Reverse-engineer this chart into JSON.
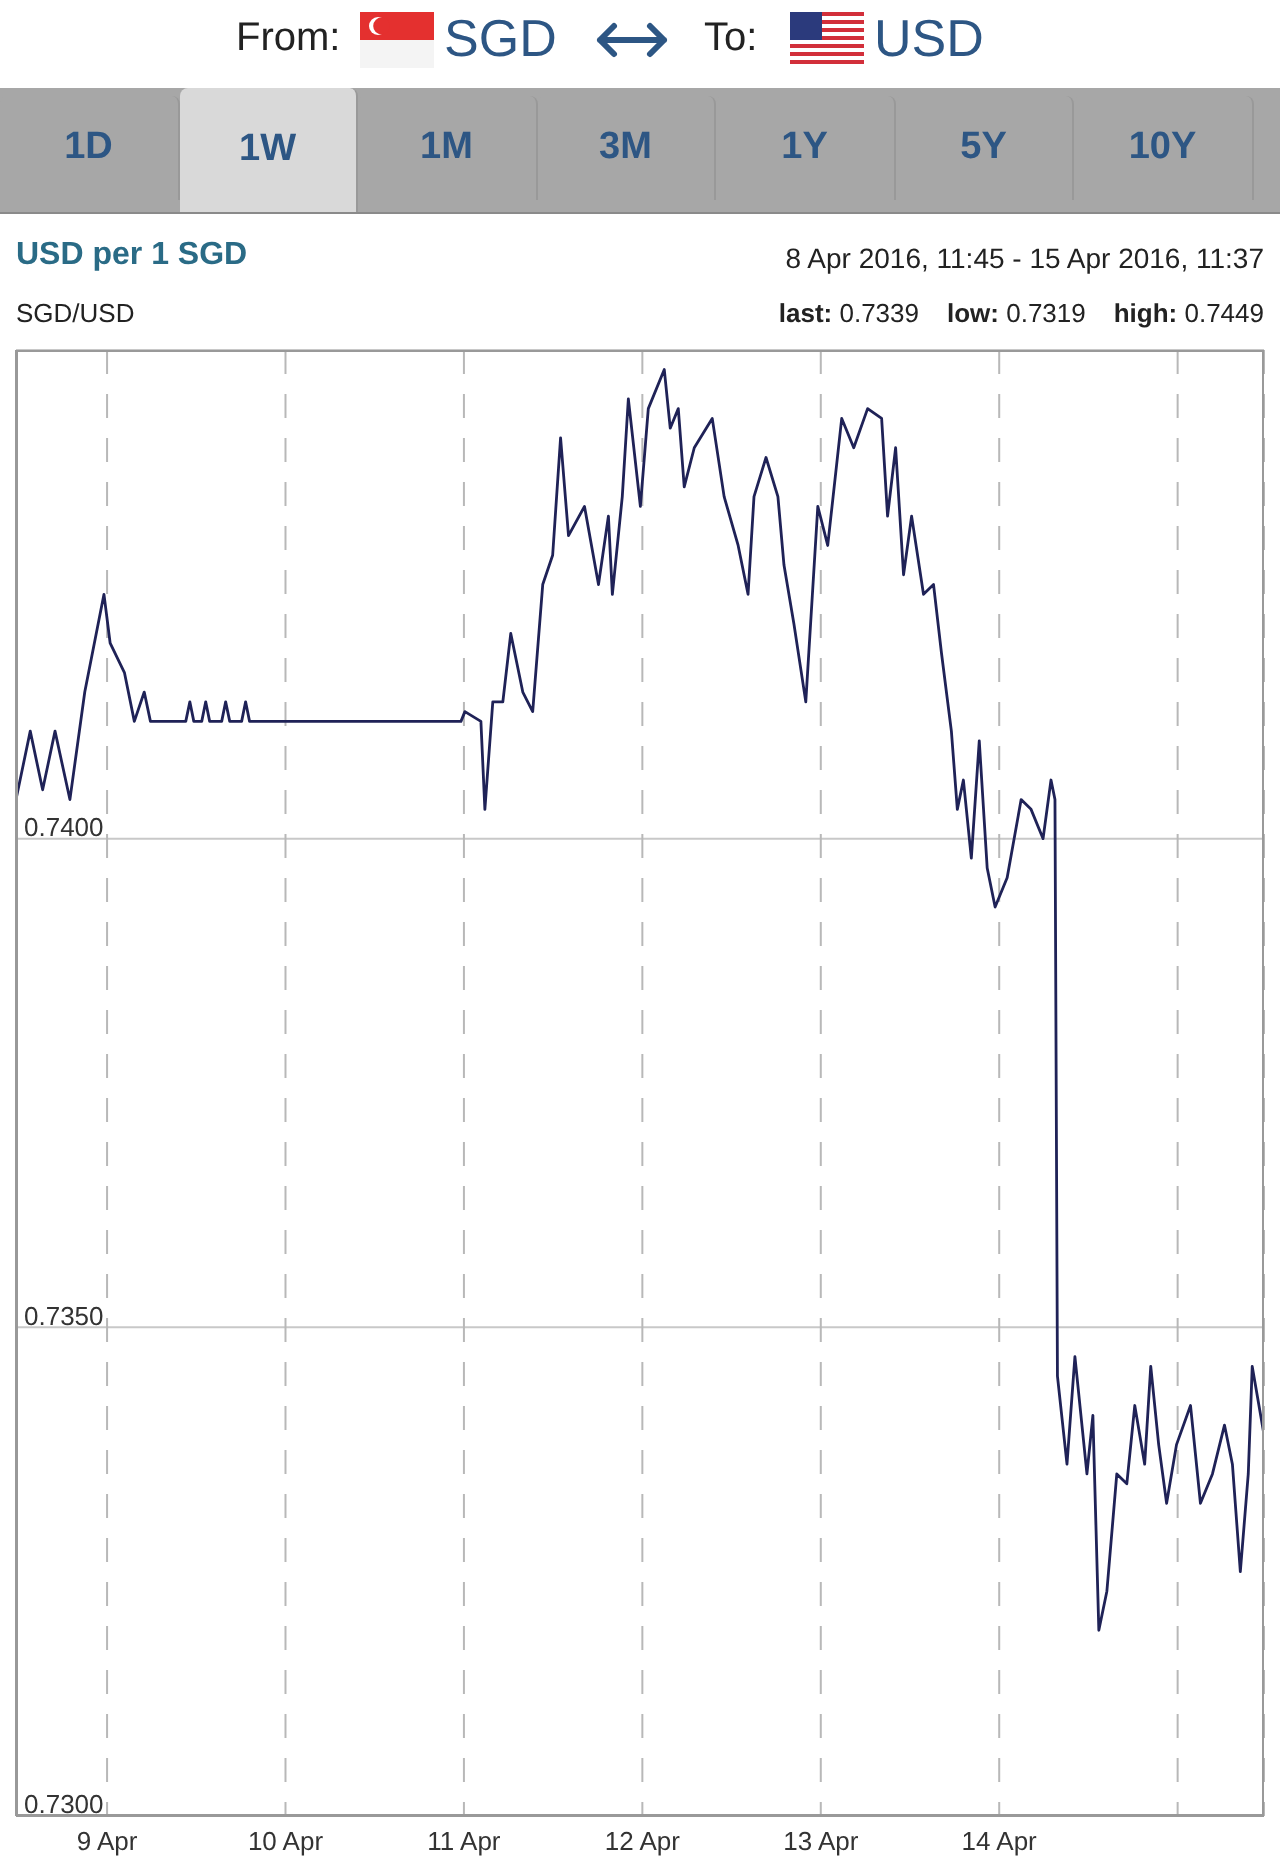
{
  "chart_data": {
    "type": "line",
    "title": "USD per 1 SGD",
    "subtitle": "SGD/USD",
    "annotations": [
      "From:",
      "SGD",
      "To:",
      "USD",
      "1D",
      "1W",
      "1M",
      "3M",
      "1Y",
      "5Y",
      "10Y",
      "8 Apr 2016, 11:45 - 15 Apr 2016, 11:37",
      "last: 0.7339",
      "low: 0.7319",
      "high: 0.7449"
    ],
    "x": [
      "2016-04-08T11:45",
      "2016-04-08T13:40",
      "2016-04-08T15:20",
      "2016-04-08T17:00",
      "2016-04-08T19:00",
      "2016-04-08T21:00",
      "2016-04-08T23:35",
      "2016-04-09T00:25",
      "2016-04-09T02:20",
      "2016-04-09T03:40",
      "2016-04-09T05:00",
      "2016-04-09T05:50",
      "2016-04-09T10:35",
      "2016-04-09T11:08",
      "2016-04-09T11:40",
      "2016-04-09T12:44",
      "2016-04-09T13:16",
      "2016-04-09T13:48",
      "2016-04-09T15:25",
      "2016-04-09T15:57",
      "2016-04-09T16:30",
      "2016-04-09T18:06",
      "2016-04-09T18:38",
      "2016-04-09T19:10",
      "2016-04-10T23:36",
      "2016-04-11T00:08",
      "2016-04-11T02:17",
      "2016-04-11T02:49",
      "2016-04-11T03:53",
      "2016-04-11T05:14",
      "2016-04-11T06:18",
      "2016-04-11T07:55",
      "2016-04-11T09:15",
      "2016-04-11T10:36",
      "2016-04-11T11:56",
      "2016-04-11T13:00",
      "2016-04-11T14:04",
      "2016-04-11T16:13",
      "2016-04-11T18:06",
      "2016-04-11T19:26",
      "2016-04-11T19:58",
      "2016-04-11T21:18",
      "2016-04-11T22:07",
      "2016-04-11T23:44",
      "2016-04-12T00:48",
      "2016-04-12T02:57",
      "2016-04-12T03:45",
      "2016-04-12T04:50",
      "2016-04-12T05:38",
      "2016-04-12T06:59",
      "2016-04-12T09:24",
      "2016-04-12T11:00",
      "2016-04-12T12:53",
      "2016-04-12T14:13",
      "2016-04-12T15:01",
      "2016-04-12T16:38",
      "2016-04-12T18:14",
      "2016-04-12T19:03",
      "2016-04-12T20:23",
      "2016-04-12T21:59",
      "2016-04-12T23:36",
      "2016-04-13T00:56",
      "2016-04-13T02:49",
      "2016-04-13T04:26",
      "2016-04-13T06:18",
      "2016-04-13T08:11",
      "2016-04-13T08:59",
      "2016-04-13T10:04",
      "2016-04-13T11:08",
      "2016-04-13T12:13",
      "2016-04-13T13:49",
      "2016-04-13T15:10",
      "2016-04-13T16:14",
      "2016-04-13T17:34",
      "2016-04-13T18:22",
      "2016-04-13T19:11",
      "2016-04-13T20:15",
      "2016-04-13T21:19",
      "2016-04-13T22:23",
      "2016-04-13T23:27",
      "2016-04-14T01:04",
      "2016-04-14T02:57",
      "2016-04-14T04:17",
      "2016-04-14T05:54",
      "2016-04-14T06:58",
      "2016-04-14T07:30",
      "2016-04-14T07:50",
      "2016-04-14T09:07",
      "2016-04-14T10:11",
      "2016-04-14T11:48",
      "2016-04-14T12:36",
      "2016-04-14T13:24",
      "2016-04-14T14:29",
      "2016-04-14T15:49",
      "2016-04-14T17:10",
      "2016-04-14T18:14",
      "2016-04-14T19:34",
      "2016-04-14T20:23",
      "2016-04-14T21:27",
      "2016-04-14T22:31",
      "2016-04-14T23:51",
      "2016-04-15T01:44",
      "2016-04-15T03:04",
      "2016-04-15T04:41",
      "2016-04-15T06:18",
      "2016-04-15T07:22",
      "2016-04-15T08:26",
      "2016-04-15T09:30",
      "2016-04-15T10:02",
      "2016-04-15T11:37"
    ],
    "series": [
      {
        "color": "#1f2257",
        "values": [
          0.7404,
          0.7411,
          0.7405,
          0.7411,
          0.7404,
          0.7415,
          0.7425,
          0.742,
          0.7417,
          0.7412,
          0.7415,
          0.7412,
          0.7412,
          0.7414,
          0.7412,
          0.7412,
          0.7414,
          0.7412,
          0.7412,
          0.7414,
          0.7412,
          0.7412,
          0.7414,
          0.7412,
          0.7412,
          0.7413,
          0.7412,
          0.7403,
          0.7414,
          0.7414,
          0.7421,
          0.7415,
          0.7413,
          0.7426,
          0.7429,
          0.7441,
          0.7431,
          0.7434,
          0.7426,
          0.7433,
          0.7425,
          0.7435,
          0.7445,
          0.7434,
          0.7444,
          0.7448,
          0.7442,
          0.7444,
          0.7436,
          0.744,
          0.7443,
          0.7435,
          0.743,
          0.7425,
          0.7435,
          0.7439,
          0.7435,
          0.7428,
          0.7422,
          0.7414,
          0.7434,
          0.743,
          0.7443,
          0.744,
          0.7444,
          0.7443,
          0.7433,
          0.744,
          0.7427,
          0.7433,
          0.7425,
          0.7426,
          0.7419,
          0.7411,
          0.7403,
          0.7406,
          0.7398,
          0.741,
          0.7397,
          0.7393,
          0.7396,
          0.7404,
          0.7403,
          0.74,
          0.7406,
          0.7404,
          0.7345,
          0.7336,
          0.7347,
          0.7335,
          0.7341,
          0.7319,
          0.7323,
          0.7335,
          0.7334,
          0.7342,
          0.7336,
          0.7346,
          0.7338,
          0.7332,
          0.7338,
          0.7342,
          0.7332,
          0.7335,
          0.734,
          0.7336,
          0.7325,
          0.7335,
          0.7346,
          0.7339
        ]
      }
    ],
    "xlim": [
      "2016-04-08T11:45",
      "2016-04-15T11:37"
    ],
    "xticks": [
      {
        "value": "2016-04-09",
        "label": "9 Apr"
      },
      {
        "value": "2016-04-10",
        "label": "10 Apr"
      },
      {
        "value": "2016-04-11",
        "label": "11 Apr"
      },
      {
        "value": "2016-04-12",
        "label": "12 Apr"
      },
      {
        "value": "2016-04-13",
        "label": "13 Apr"
      },
      {
        "value": "2016-04-14",
        "label": "14 Apr"
      },
      {
        "value": "2016-04-15",
        "label": null
      }
    ],
    "ylim": [
      0.73,
      0.745
    ],
    "yticks": [
      {
        "value": 0.73,
        "label": "0.7300"
      },
      {
        "value": 0.735,
        "label": "0.7350"
      },
      {
        "value": 0.74,
        "label": "0.7400"
      }
    ],
    "grid": true
  }
}
